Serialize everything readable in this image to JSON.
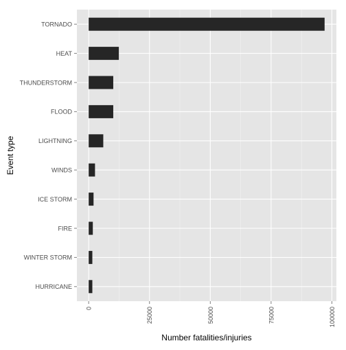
{
  "chart_data": {
    "type": "bar",
    "orientation": "horizontal",
    "categories": [
      "TORNADO",
      "HEAT",
      "THUNDERSTORM",
      "FLOOD",
      "LIGHTNING",
      "WINDS",
      "ICE STORM",
      "FIRE",
      "WINTER STORM",
      "HURRICANE"
    ],
    "values": [
      97000,
      12400,
      10100,
      10100,
      6000,
      2600,
      2000,
      1700,
      1500,
      1500
    ],
    "x_ticks": [
      0,
      25000,
      50000,
      75000,
      100000
    ],
    "x_tick_labels": [
      "0",
      "25000",
      "50000",
      "75000",
      "100000"
    ],
    "xlim": [
      -4850,
      101850
    ],
    "xlabel": "Number fatalities/injuries",
    "ylabel": "Event type",
    "grid": true,
    "legend": "none",
    "colors": {
      "panel": "#e5e5e5",
      "grid_major": "#ffffff",
      "grid_minor": "#f2f2f2",
      "bar": "#262626",
      "tick_text": "#4d4d4d",
      "axis_title": "#000000"
    }
  }
}
